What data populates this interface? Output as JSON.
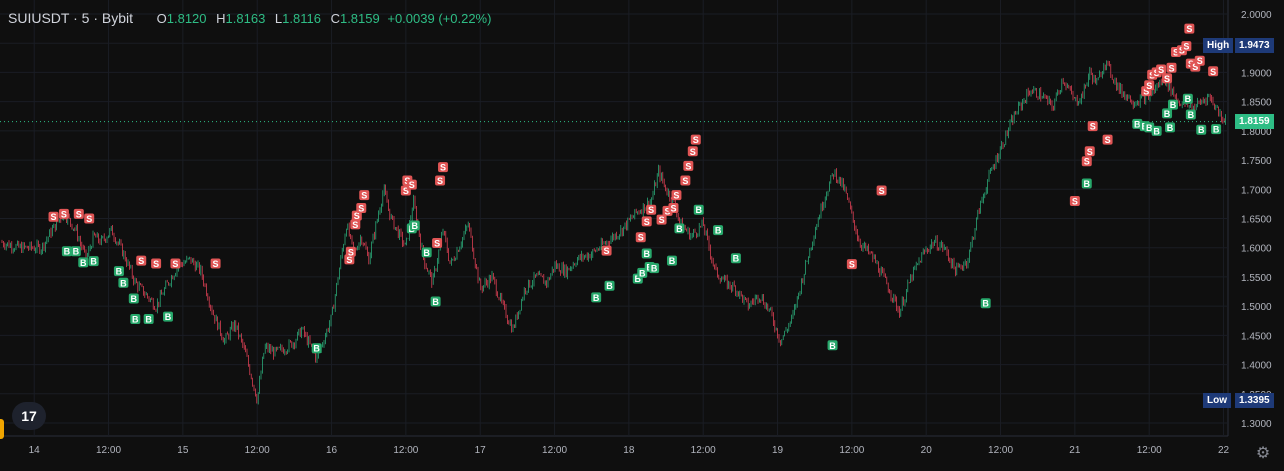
{
  "header": {
    "symbol": "SUIUSDT · 5 · Bybit",
    "open_label": "O",
    "open": "1.8120",
    "high_label": "H",
    "high": "1.8163",
    "low_label": "L",
    "low": "1.8116",
    "close_label": "C",
    "close": "1.8159",
    "change": "+0.0039 (+0.22%)"
  },
  "price_tags": {
    "high_label": "High",
    "high_value": "1.9473",
    "current_value": "1.8159",
    "low_label": "Low",
    "low_value": "1.3395"
  },
  "colors": {
    "up": "#2ebd85",
    "down": "#f6465d",
    "sell": "#e05555",
    "buy": "#27a86b",
    "tag_bg": "#1e3a78",
    "current_bg": "#2ebd85"
  },
  "logo_text": "17",
  "settings_icon": "gear-icon",
  "chart_data": {
    "type": "line",
    "xlabel": "",
    "ylabel": "",
    "ylim": [
      1.27,
      2.02
    ],
    "y_ticks": [
      "2.0000",
      "1.9500",
      "1.9000",
      "1.8500",
      "1.8000",
      "1.7500",
      "1.7000",
      "1.6500",
      "1.6000",
      "1.5500",
      "1.5000",
      "1.4500",
      "1.4000",
      "1.3500",
      "1.3000"
    ],
    "x_ticks": [
      "14",
      "12:00",
      "15",
      "12:00",
      "16",
      "12:00",
      "17",
      "12:00",
      "18",
      "12:00",
      "19",
      "12:00",
      "20",
      "12:00",
      "21",
      "12:00",
      "22"
    ],
    "x_tick_t": [
      0.5,
      1.0,
      1.5,
      2.0,
      2.5,
      3.0,
      3.5,
      4.0,
      4.5,
      5.0,
      5.5,
      6.0,
      6.5,
      7.0,
      7.5,
      8.0,
      8.5
    ],
    "t_range": [
      0.27,
      8.53
    ],
    "series": [
      {
        "t": [
          0.27,
          0.4,
          0.55,
          0.62,
          0.7,
          0.78,
          0.85,
          0.9,
          0.95,
          1.02,
          1.1,
          1.18,
          1.25,
          1.32,
          1.4,
          1.47,
          1.55,
          1.62,
          1.7,
          1.78,
          1.85,
          1.92,
          2.0,
          2.05,
          2.12,
          2.2,
          2.25,
          2.3,
          2.4,
          2.5,
          2.55,
          2.6,
          2.65,
          2.7,
          2.75,
          2.8,
          2.85,
          2.9,
          3.0,
          3.05,
          3.12,
          3.18,
          3.25,
          3.3,
          3.37,
          3.42,
          3.5,
          3.58,
          3.65,
          3.72,
          3.8,
          3.88,
          3.95,
          4.0,
          4.08,
          4.15,
          4.25,
          4.35,
          4.45,
          4.55,
          4.65,
          4.7,
          4.75,
          4.8,
          4.85,
          4.92,
          5.0,
          5.08,
          5.15,
          5.22,
          5.3,
          5.38,
          5.45,
          5.52,
          5.6,
          5.68,
          5.75,
          5.82,
          5.88,
          5.95,
          6.05,
          6.15,
          6.25,
          6.32,
          6.4,
          6.48,
          6.55,
          6.62,
          6.7,
          6.78,
          6.85,
          6.92,
          7.0,
          7.1,
          7.2,
          7.28,
          7.35,
          7.42,
          7.5,
          7.55,
          7.6,
          7.65,
          7.7,
          7.8,
          7.9,
          8.0,
          8.1,
          8.2,
          8.3,
          8.4,
          8.5
        ],
        "close": [
          1.61,
          1.6,
          1.6,
          1.63,
          1.66,
          1.63,
          1.58,
          1.62,
          1.61,
          1.63,
          1.59,
          1.54,
          1.52,
          1.5,
          1.54,
          1.57,
          1.58,
          1.56,
          1.49,
          1.44,
          1.47,
          1.42,
          1.34,
          1.43,
          1.42,
          1.43,
          1.44,
          1.46,
          1.41,
          1.48,
          1.56,
          1.64,
          1.59,
          1.62,
          1.58,
          1.64,
          1.7,
          1.65,
          1.6,
          1.68,
          1.58,
          1.54,
          1.63,
          1.57,
          1.61,
          1.64,
          1.53,
          1.55,
          1.5,
          1.46,
          1.53,
          1.55,
          1.54,
          1.57,
          1.56,
          1.58,
          1.59,
          1.61,
          1.63,
          1.66,
          1.68,
          1.73,
          1.7,
          1.68,
          1.64,
          1.62,
          1.64,
          1.56,
          1.54,
          1.53,
          1.5,
          1.52,
          1.49,
          1.44,
          1.48,
          1.56,
          1.63,
          1.69,
          1.73,
          1.7,
          1.61,
          1.58,
          1.53,
          1.49,
          1.55,
          1.59,
          1.61,
          1.6,
          1.56,
          1.58,
          1.66,
          1.72,
          1.77,
          1.83,
          1.87,
          1.86,
          1.84,
          1.89,
          1.85,
          1.86,
          1.9,
          1.88,
          1.92,
          1.87,
          1.85,
          1.86,
          1.89,
          1.85,
          1.84,
          1.86,
          1.82
        ]
      }
    ],
    "sell_markers": [
      [
        0.63,
        1.653
      ],
      [
        0.7,
        1.658
      ],
      [
        0.8,
        1.658
      ],
      [
        0.87,
        1.65
      ],
      [
        1.22,
        1.578
      ],
      [
        1.32,
        1.573
      ],
      [
        1.45,
        1.573
      ],
      [
        1.72,
        1.573
      ],
      [
        2.62,
        1.58
      ],
      [
        2.63,
        1.593
      ],
      [
        2.66,
        1.64
      ],
      [
        2.67,
        1.655
      ],
      [
        2.7,
        1.668
      ],
      [
        2.72,
        1.69
      ],
      [
        3.0,
        1.698
      ],
      [
        3.01,
        1.715
      ],
      [
        3.04,
        1.708
      ],
      [
        3.23,
        1.715
      ],
      [
        3.25,
        1.738
      ],
      [
        3.21,
        1.608
      ],
      [
        4.35,
        1.595
      ],
      [
        4.58,
        1.618
      ],
      [
        4.62,
        1.645
      ],
      [
        4.65,
        1.665
      ],
      [
        4.72,
        1.648
      ],
      [
        4.76,
        1.663
      ],
      [
        4.8,
        1.668
      ],
      [
        4.82,
        1.69
      ],
      [
        4.88,
        1.715
      ],
      [
        4.9,
        1.74
      ],
      [
        4.93,
        1.765
      ],
      [
        4.95,
        1.785
      ],
      [
        6.0,
        1.572
      ],
      [
        6.2,
        1.698
      ],
      [
        7.5,
        1.68
      ],
      [
        7.58,
        1.748
      ],
      [
        7.6,
        1.765
      ],
      [
        7.62,
        1.808
      ],
      [
        7.72,
        1.785
      ],
      [
        7.98,
        1.868
      ],
      [
        8.0,
        1.878
      ],
      [
        8.02,
        1.896
      ],
      [
        8.05,
        1.9
      ],
      [
        8.08,
        1.905
      ],
      [
        8.12,
        1.89
      ],
      [
        8.15,
        1.908
      ],
      [
        8.18,
        1.935
      ],
      [
        8.22,
        1.938
      ],
      [
        8.25,
        1.945
      ],
      [
        8.28,
        1.915
      ],
      [
        8.31,
        1.91
      ],
      [
        8.34,
        1.92
      ],
      [
        8.27,
        1.975
      ],
      [
        8.43,
        1.902
      ]
    ],
    "buy_markers": [
      [
        0.72,
        1.594
      ],
      [
        0.78,
        1.594
      ],
      [
        0.83,
        1.575
      ],
      [
        0.9,
        1.577
      ],
      [
        1.07,
        1.56
      ],
      [
        1.1,
        1.54
      ],
      [
        1.17,
        1.513
      ],
      [
        1.18,
        1.478
      ],
      [
        1.27,
        1.478
      ],
      [
        1.4,
        1.482
      ],
      [
        2.4,
        1.428
      ],
      [
        3.04,
        1.633
      ],
      [
        3.06,
        1.638
      ],
      [
        3.14,
        1.592
      ],
      [
        3.2,
        1.508
      ],
      [
        4.28,
        1.515
      ],
      [
        4.37,
        1.535
      ],
      [
        4.56,
        1.547
      ],
      [
        4.59,
        1.557
      ],
      [
        4.62,
        1.59
      ],
      [
        4.64,
        1.567
      ],
      [
        4.67,
        1.565
      ],
      [
        4.79,
        1.578
      ],
      [
        4.84,
        1.633
      ],
      [
        4.97,
        1.665
      ],
      [
        5.1,
        1.63
      ],
      [
        5.22,
        1.582
      ],
      [
        5.87,
        1.433
      ],
      [
        6.9,
        1.505
      ],
      [
        7.58,
        1.71
      ],
      [
        7.92,
        1.812
      ],
      [
        7.97,
        1.808
      ],
      [
        8.0,
        1.806
      ],
      [
        8.05,
        1.8
      ],
      [
        8.12,
        1.83
      ],
      [
        8.14,
        1.806
      ],
      [
        8.16,
        1.845
      ],
      [
        8.26,
        1.855
      ],
      [
        8.28,
        1.828
      ],
      [
        8.35,
        1.802
      ],
      [
        8.45,
        1.803
      ]
    ]
  }
}
